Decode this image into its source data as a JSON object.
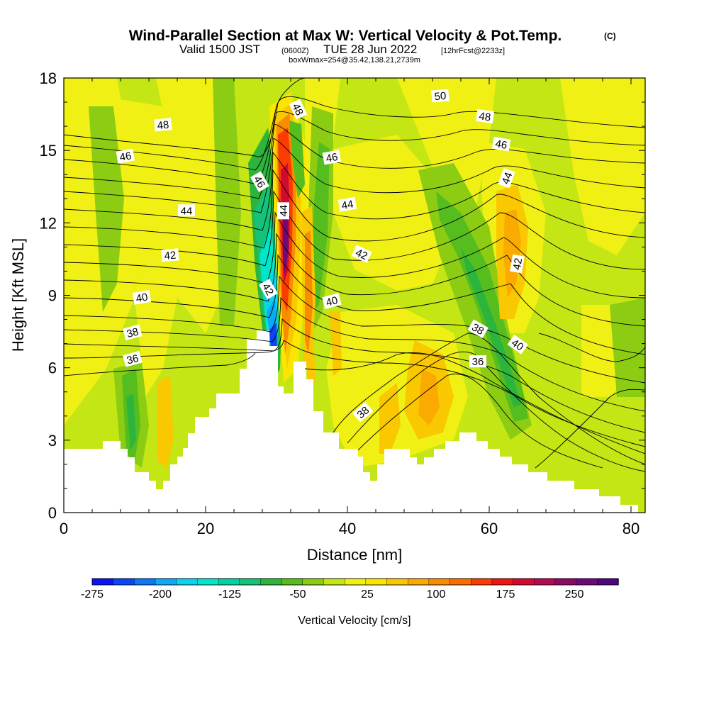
{
  "title": {
    "main": "Wind-Parallel Section at Max W: Vertical Velocity & Pot.Temp.",
    "main_sup": "(C)",
    "valid_a": "Valid 1500 JST",
    "valid_small": "(0600Z)",
    "valid_b": "TUE 28 Jun 2022",
    "forecast_small": "[12hrFcst@2233z]",
    "boxline": "boxWmax=254@35.42,138.21,2739m"
  },
  "chart_data": {
    "type": "heatmap",
    "xlabel": "Distance [nm]",
    "ylabel": "Height [Kft MSL]",
    "xlim": [
      0,
      82
    ],
    "ylim": [
      0,
      18
    ],
    "x_ticks": [
      0,
      20,
      40,
      60,
      80
    ],
    "y_ticks": [
      0,
      3,
      6,
      9,
      12,
      15,
      18
    ],
    "colorbar": {
      "title": "Vertical Velocity [cm/s]",
      "labels": [
        "-275",
        "-200",
        "-125",
        "-50",
        "25",
        "100",
        "175",
        "250"
      ],
      "colors": [
        "#0a14f0",
        "#0a46f5",
        "#0a78f5",
        "#0aaaf5",
        "#0ad2f0",
        "#00e6c8",
        "#00d2a0",
        "#14c378",
        "#2db43c",
        "#55be1e",
        "#8ccd14",
        "#c3e614",
        "#f0f014",
        "#fae600",
        "#fac800",
        "#faaa00",
        "#fa8c00",
        "#fa6e00",
        "#fa3c00",
        "#f01414",
        "#d20a32",
        "#b40a50",
        "#8c0a64",
        "#6e0a78",
        "#50087c"
      ]
    },
    "theta_contour_levels": [
      36,
      38,
      40,
      42,
      44,
      46,
      48,
      50
    ],
    "contour_labels": [
      {
        "text": "50",
        "x": 53.1,
        "y": 17.25,
        "angle": -5
      },
      {
        "text": "48",
        "x": 14.0,
        "y": 16.05,
        "angle": -5
      },
      {
        "text": "48",
        "x": 59.4,
        "y": 16.4,
        "angle": 8
      },
      {
        "text": "48",
        "x": 33.0,
        "y": 16.7,
        "angle": 65
      },
      {
        "text": "46",
        "x": 8.7,
        "y": 14.75,
        "angle": -10
      },
      {
        "text": "46",
        "x": 37.8,
        "y": 14.7,
        "angle": -10
      },
      {
        "text": "46",
        "x": 61.7,
        "y": 15.25,
        "angle": 10
      },
      {
        "text": "46",
        "x": 27.6,
        "y": 13.7,
        "angle": 60
      },
      {
        "text": "44",
        "x": 17.3,
        "y": 12.5,
        "angle": 0
      },
      {
        "text": "44",
        "x": 31.0,
        "y": 12.5,
        "angle": -90
      },
      {
        "text": "44",
        "x": 40.0,
        "y": 12.75,
        "angle": -10
      },
      {
        "text": "44",
        "x": 62.5,
        "y": 13.85,
        "angle": -70
      },
      {
        "text": "42",
        "x": 15.0,
        "y": 10.65,
        "angle": -5
      },
      {
        "text": "42",
        "x": 42.0,
        "y": 10.7,
        "angle": 25
      },
      {
        "text": "42",
        "x": 64.0,
        "y": 10.3,
        "angle": -80
      },
      {
        "text": "42",
        "x": 28.8,
        "y": 9.25,
        "angle": 60
      },
      {
        "text": "40",
        "x": 11.0,
        "y": 8.9,
        "angle": -10
      },
      {
        "text": "40",
        "x": 37.8,
        "y": 8.75,
        "angle": -15
      },
      {
        "text": "40",
        "x": 64.0,
        "y": 6.95,
        "angle": 35
      },
      {
        "text": "38",
        "x": 9.7,
        "y": 7.45,
        "angle": -15
      },
      {
        "text": "38",
        "x": 58.4,
        "y": 7.6,
        "angle": 30
      },
      {
        "text": "38",
        "x": 42.2,
        "y": 4.15,
        "angle": -40
      },
      {
        "text": "36",
        "x": 9.7,
        "y": 6.35,
        "angle": -15
      },
      {
        "text": "36",
        "x": 58.4,
        "y": 6.25,
        "angle": 0
      }
    ]
  }
}
